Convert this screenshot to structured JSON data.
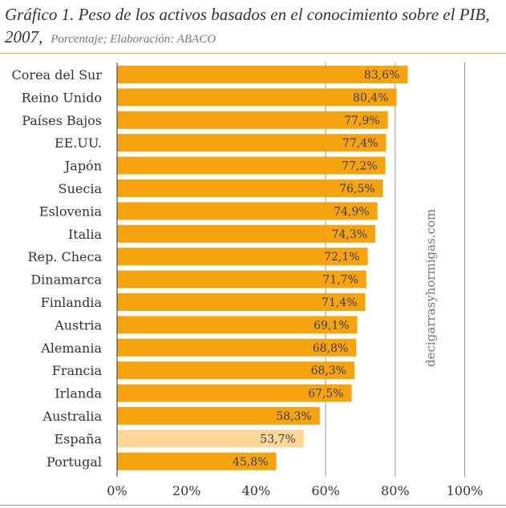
{
  "header": {
    "title_line1": "Gráfico 1. Peso de los activos basados en el conocimiento sobre el PIB,",
    "title_line2": "2007,",
    "subtitle": "Porcentaje; Elaboración: ABACO"
  },
  "watermark": "decigarrasyhormigas.com",
  "colors": {
    "bar": "#f5a40f",
    "highlight": "#fdd699",
    "gridline": "#999999",
    "text": "#333333"
  },
  "chart_data": {
    "type": "bar",
    "orientation": "horizontal",
    "categories": [
      "Corea del Sur",
      "Reino Unido",
      "Países Bajos",
      "EE.UU.",
      "Japón",
      "Suecia",
      "Eslovenia",
      "Italia",
      "Rep. Checa",
      "Dinamarca",
      "Finlandia",
      "Austria",
      "Alemania",
      "Francia",
      "Irlanda",
      "Australia",
      "España",
      "Portugal"
    ],
    "values": [
      83.6,
      80.4,
      77.9,
      77.4,
      77.2,
      76.5,
      74.9,
      74.3,
      72.1,
      71.7,
      71.4,
      69.1,
      68.8,
      68.3,
      67.5,
      58.3,
      53.7,
      45.8
    ],
    "data_labels": [
      "83,6%",
      "80,4%",
      "77,9%",
      "77,4%",
      "77,2%",
      "76,5%",
      "74,9%",
      "74,3%",
      "72,1%",
      "71,7%",
      "71,4%",
      "69,1%",
      "68,8%",
      "68,3%",
      "67,5%",
      "58,3%",
      "53,7%",
      "45,8%"
    ],
    "highlight": "España",
    "xlim": [
      0,
      100
    ],
    "xticks": [
      0,
      20,
      40,
      60,
      80,
      100
    ],
    "xtick_labels": [
      "0%",
      "20%",
      "40%",
      "60%",
      "80%",
      "100%"
    ],
    "gridlines": [
      60,
      80,
      100
    ]
  }
}
